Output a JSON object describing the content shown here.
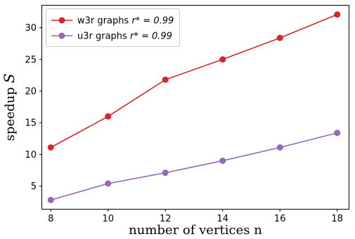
{
  "chart_data": {
    "type": "line",
    "title": "",
    "xlabel": "number of vertices n",
    "ylabel_text": "speedup ",
    "ylabel_symbol": "S",
    "x": [
      8,
      10,
      12,
      14,
      16,
      18
    ],
    "xlim": [
      7.7,
      18.4
    ],
    "ylim": [
      1.4,
      33.5
    ],
    "xticks": [
      "8",
      "10",
      "12",
      "14",
      "16",
      "18"
    ],
    "yticks": [
      "5",
      "10",
      "15",
      "20",
      "25",
      "30"
    ],
    "grid": false,
    "legend_placement": "top-left",
    "series": [
      {
        "name": "w3r graphs",
        "name_math": "r* = 0.99",
        "color": "#d62728",
        "values": [
          11.1,
          16.0,
          21.8,
          25.0,
          28.4,
          32.1
        ]
      },
      {
        "name": "u3r graphs",
        "name_math": "r* = 0.99",
        "color": "#9467bd",
        "values": [
          2.8,
          5.4,
          7.1,
          9.0,
          11.1,
          13.4
        ]
      }
    ]
  }
}
